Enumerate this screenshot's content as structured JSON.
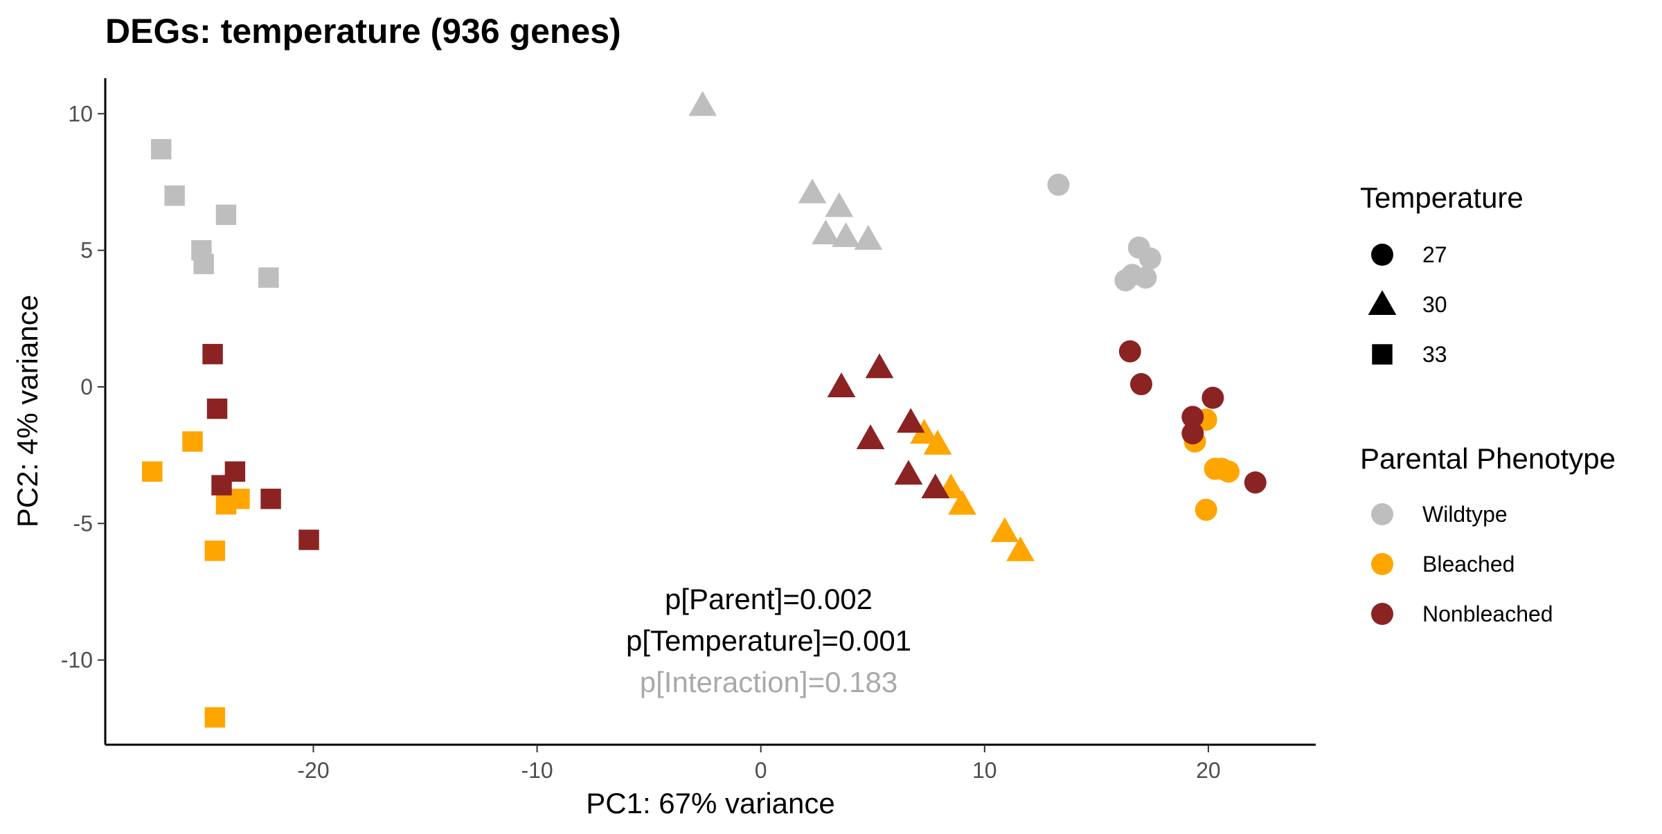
{
  "chart_data": {
    "type": "scatter",
    "title": "DEGs: temperature (936 genes)",
    "xlabel": "PC1: 67% variance",
    "ylabel": "PC2: 4% variance",
    "xlim": [
      -29.3,
      24.8
    ],
    "ylim": [
      -13.1,
      11.3
    ],
    "xticks": [
      -20,
      -10,
      0,
      10,
      20
    ],
    "yticks": [
      -10,
      -5,
      0,
      5,
      10
    ],
    "xtick_labels": [
      "-20",
      "-10",
      "0",
      "10",
      "20"
    ],
    "ytick_labels": [
      "-10",
      "-5",
      "0",
      "5",
      "10"
    ],
    "grid": false,
    "legend_position": "right",
    "colors": {
      "Wildtype": "#bebebe",
      "Bleached": "#ffa500",
      "Nonbleached": "#8b2323"
    },
    "legends": [
      {
        "title": "Temperature",
        "entries": [
          {
            "label": "27",
            "shape": "circle"
          },
          {
            "label": "30",
            "shape": "triangle"
          },
          {
            "label": "33",
            "shape": "square"
          }
        ]
      },
      {
        "title": "Parental Phenotype",
        "entries": [
          {
            "label": "Wildtype",
            "shape": "circle"
          },
          {
            "label": "Bleached",
            "shape": "circle"
          },
          {
            "label": "Nonbleached",
            "shape": "circle"
          }
        ]
      }
    ],
    "annotations": [
      {
        "text": "p[Parent]=0.002",
        "color": "#000000"
      },
      {
        "text": "p[Temperature]=0.001",
        "color": "#000000"
      },
      {
        "text": "p[Interaction]=0.183",
        "color": "#a9a9a9"
      }
    ],
    "points": [
      {
        "x": 13.3,
        "y": 7.4,
        "temperature": "27",
        "phenotype": "Wildtype"
      },
      {
        "x": 16.9,
        "y": 5.1,
        "temperature": "27",
        "phenotype": "Wildtype"
      },
      {
        "x": 17.4,
        "y": 4.7,
        "temperature": "27",
        "phenotype": "Wildtype"
      },
      {
        "x": 16.6,
        "y": 4.1,
        "temperature": "27",
        "phenotype": "Wildtype"
      },
      {
        "x": 16.3,
        "y": 3.9,
        "temperature": "27",
        "phenotype": "Wildtype"
      },
      {
        "x": 17.2,
        "y": 4.0,
        "temperature": "27",
        "phenotype": "Wildtype"
      },
      {
        "x": 19.9,
        "y": -1.2,
        "temperature": "27",
        "phenotype": "Bleached"
      },
      {
        "x": 19.4,
        "y": -2.0,
        "temperature": "27",
        "phenotype": "Bleached"
      },
      {
        "x": 20.3,
        "y": -3.0,
        "temperature": "27",
        "phenotype": "Bleached"
      },
      {
        "x": 20.6,
        "y": -3.0,
        "temperature": "27",
        "phenotype": "Bleached"
      },
      {
        "x": 20.9,
        "y": -3.1,
        "temperature": "27",
        "phenotype": "Bleached"
      },
      {
        "x": 19.9,
        "y": -4.5,
        "temperature": "27",
        "phenotype": "Bleached"
      },
      {
        "x": 16.5,
        "y": 1.3,
        "temperature": "27",
        "phenotype": "Nonbleached"
      },
      {
        "x": 17.0,
        "y": 0.1,
        "temperature": "27",
        "phenotype": "Nonbleached"
      },
      {
        "x": 20.2,
        "y": -0.4,
        "temperature": "27",
        "phenotype": "Nonbleached"
      },
      {
        "x": 19.3,
        "y": -1.1,
        "temperature": "27",
        "phenotype": "Nonbleached"
      },
      {
        "x": 19.3,
        "y": -1.7,
        "temperature": "27",
        "phenotype": "Nonbleached"
      },
      {
        "x": 22.1,
        "y": -3.5,
        "temperature": "27",
        "phenotype": "Nonbleached"
      },
      {
        "x": -2.6,
        "y": 10.3,
        "temperature": "30",
        "phenotype": "Wildtype"
      },
      {
        "x": 2.3,
        "y": 7.1,
        "temperature": "30",
        "phenotype": "Wildtype"
      },
      {
        "x": 3.5,
        "y": 6.6,
        "temperature": "30",
        "phenotype": "Wildtype"
      },
      {
        "x": 2.9,
        "y": 5.6,
        "temperature": "30",
        "phenotype": "Wildtype"
      },
      {
        "x": 3.8,
        "y": 5.5,
        "temperature": "30",
        "phenotype": "Wildtype"
      },
      {
        "x": 4.8,
        "y": 5.4,
        "temperature": "30",
        "phenotype": "Wildtype"
      },
      {
        "x": 7.3,
        "y": -1.7,
        "temperature": "30",
        "phenotype": "Bleached"
      },
      {
        "x": 7.9,
        "y": -2.1,
        "temperature": "30",
        "phenotype": "Bleached"
      },
      {
        "x": 8.5,
        "y": -3.7,
        "temperature": "30",
        "phenotype": "Bleached"
      },
      {
        "x": 9.0,
        "y": -4.3,
        "temperature": "30",
        "phenotype": "Bleached"
      },
      {
        "x": 10.9,
        "y": -5.3,
        "temperature": "30",
        "phenotype": "Bleached"
      },
      {
        "x": 11.6,
        "y": -6.0,
        "temperature": "30",
        "phenotype": "Bleached"
      },
      {
        "x": 5.3,
        "y": 0.7,
        "temperature": "30",
        "phenotype": "Nonbleached"
      },
      {
        "x": 3.6,
        "y": 0.0,
        "temperature": "30",
        "phenotype": "Nonbleached"
      },
      {
        "x": 6.7,
        "y": -1.3,
        "temperature": "30",
        "phenotype": "Nonbleached"
      },
      {
        "x": 4.9,
        "y": -1.9,
        "temperature": "30",
        "phenotype": "Nonbleached"
      },
      {
        "x": 6.6,
        "y": -3.2,
        "temperature": "30",
        "phenotype": "Nonbleached"
      },
      {
        "x": 7.8,
        "y": -3.7,
        "temperature": "30",
        "phenotype": "Nonbleached"
      },
      {
        "x": -26.8,
        "y": 8.7,
        "temperature": "33",
        "phenotype": "Wildtype"
      },
      {
        "x": -26.2,
        "y": 7.0,
        "temperature": "33",
        "phenotype": "Wildtype"
      },
      {
        "x": -23.9,
        "y": 6.3,
        "temperature": "33",
        "phenotype": "Wildtype"
      },
      {
        "x": -25.0,
        "y": 5.0,
        "temperature": "33",
        "phenotype": "Wildtype"
      },
      {
        "x": -24.9,
        "y": 4.5,
        "temperature": "33",
        "phenotype": "Wildtype"
      },
      {
        "x": -22.0,
        "y": 4.0,
        "temperature": "33",
        "phenotype": "Wildtype"
      },
      {
        "x": -25.4,
        "y": -2.0,
        "temperature": "33",
        "phenotype": "Bleached"
      },
      {
        "x": -27.2,
        "y": -3.1,
        "temperature": "33",
        "phenotype": "Bleached"
      },
      {
        "x": -23.9,
        "y": -4.3,
        "temperature": "33",
        "phenotype": "Bleached"
      },
      {
        "x": -23.3,
        "y": -4.1,
        "temperature": "33",
        "phenotype": "Bleached"
      },
      {
        "x": -24.4,
        "y": -6.0,
        "temperature": "33",
        "phenotype": "Bleached"
      },
      {
        "x": -24.4,
        "y": -12.1,
        "temperature": "33",
        "phenotype": "Bleached"
      },
      {
        "x": -24.5,
        "y": 1.2,
        "temperature": "33",
        "phenotype": "Nonbleached"
      },
      {
        "x": -24.3,
        "y": -0.8,
        "temperature": "33",
        "phenotype": "Nonbleached"
      },
      {
        "x": -23.5,
        "y": -3.1,
        "temperature": "33",
        "phenotype": "Nonbleached"
      },
      {
        "x": -24.1,
        "y": -3.6,
        "temperature": "33",
        "phenotype": "Nonbleached"
      },
      {
        "x": -21.9,
        "y": -4.1,
        "temperature": "33",
        "phenotype": "Nonbleached"
      },
      {
        "x": -20.2,
        "y": -5.6,
        "temperature": "33",
        "phenotype": "Nonbleached"
      }
    ]
  }
}
